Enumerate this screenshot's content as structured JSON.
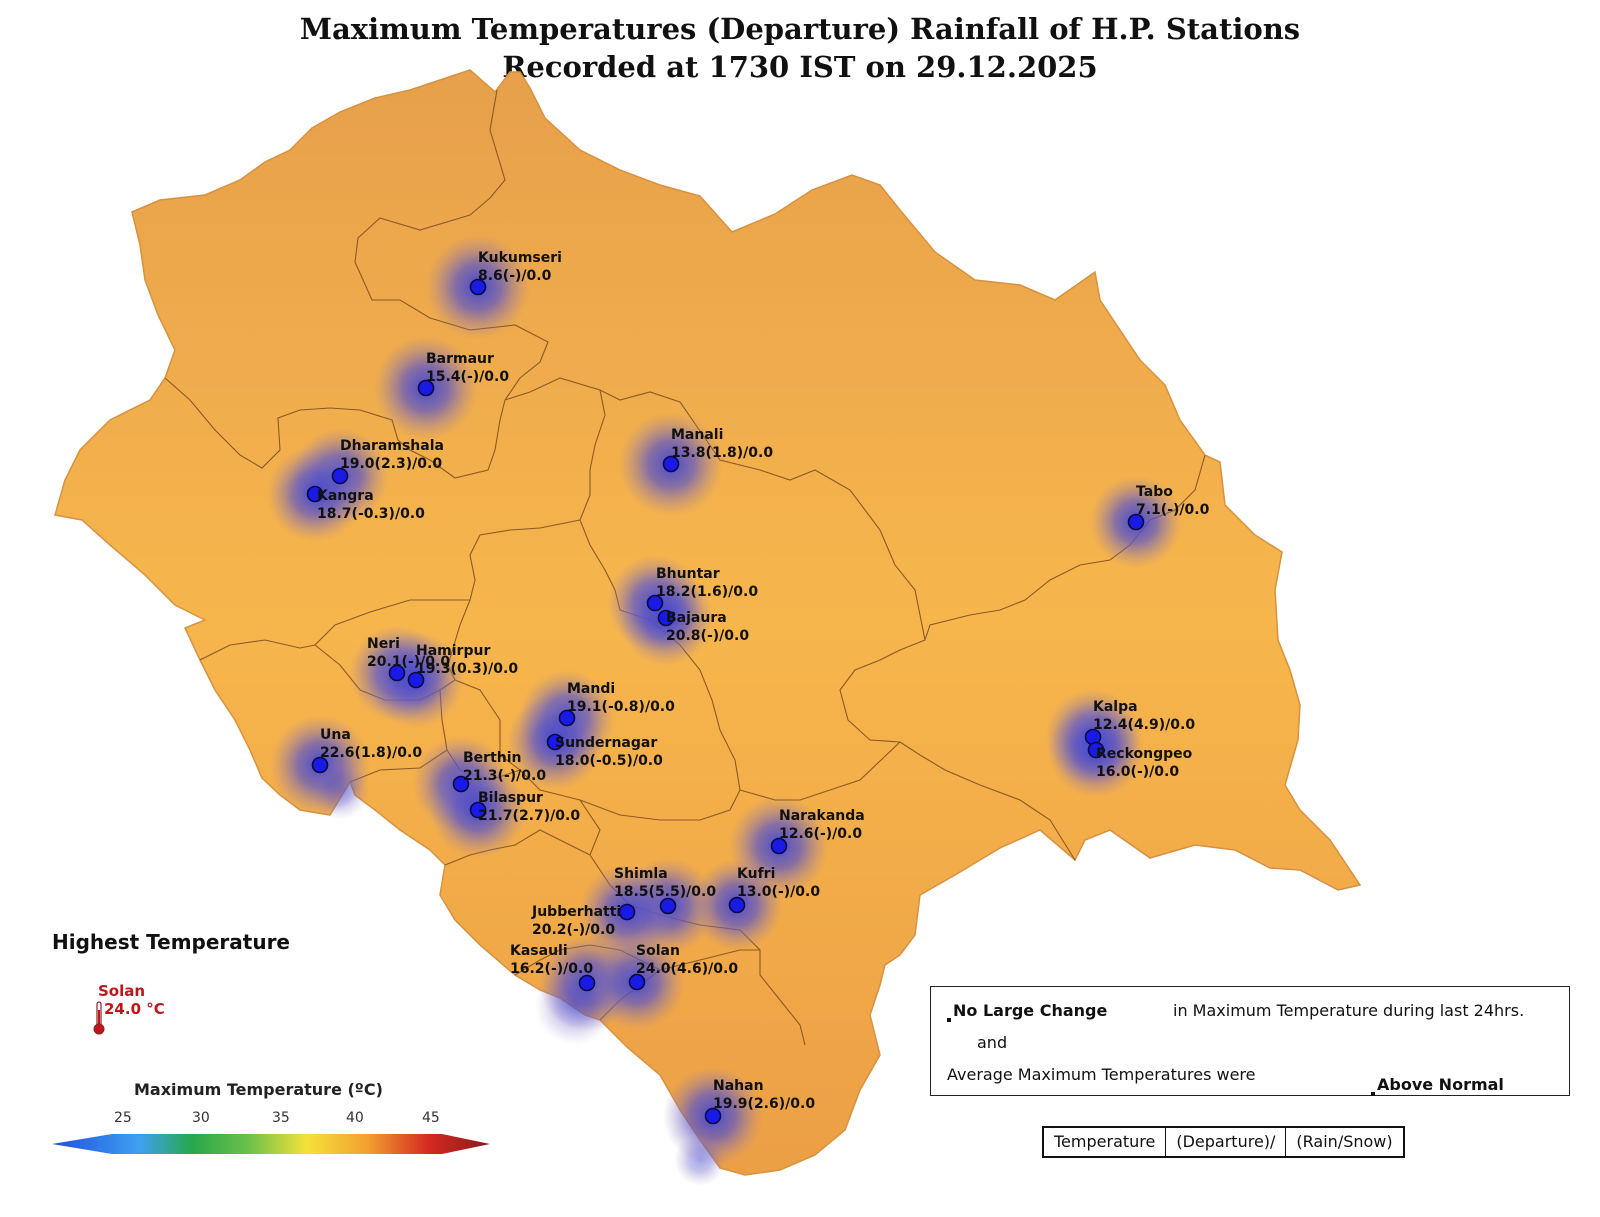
{
  "title": {
    "line1": "Maximum Temperatures (Departure) Rainfall of H.P. Stations",
    "line2": "Recorded at 1730 IST on 29.12.2025"
  },
  "stations": [
    {
      "name": "Kukumseri",
      "value": "8.6(-)/0.0"
    },
    {
      "name": "Barmaur",
      "value": "15.4(-)/0.0"
    },
    {
      "name": "Dharamshala",
      "value": "19.0(2.3)/0.0"
    },
    {
      "name": "Kangra",
      "value": "18.7(-0.3)/0.0"
    },
    {
      "name": "Manali",
      "value": "13.8(1.8)/0.0"
    },
    {
      "name": "Tabo",
      "value": "7.1(-)/0.0"
    },
    {
      "name": "Bhuntar",
      "value": "18.2(1.6)/0.0"
    },
    {
      "name": "Bajaura",
      "value": "20.8(-)/0.0"
    },
    {
      "name": "Neri",
      "value": "20.1(-)/0.0"
    },
    {
      "name": "Hamirpur",
      "value": "19.3(0.3)/0.0"
    },
    {
      "name": "Mandi",
      "value": "19.1(-0.8)/0.0"
    },
    {
      "name": "Sundernagar",
      "value": "18.0(-0.5)/0.0"
    },
    {
      "name": "Kalpa",
      "value": "12.4(4.9)/0.0"
    },
    {
      "name": "Reckongpeo",
      "value": "16.0(-)/0.0"
    },
    {
      "name": "Una",
      "value": "22.6(1.8)/0.0"
    },
    {
      "name": "Berthin",
      "value": "21.3(-)/0.0"
    },
    {
      "name": "Bilaspur",
      "value": "21.7(2.7)/0.0"
    },
    {
      "name": "Narakanda",
      "value": "12.6(-)/0.0"
    },
    {
      "name": "Shimla",
      "value": "18.5(5.5)/0.0"
    },
    {
      "name": "Kufri",
      "value": "13.0(-)/0.0"
    },
    {
      "name": "Jubberhatti",
      "value": "20.2(-)/0.0"
    },
    {
      "name": "Kasauli",
      "value": "16.2(-)/0.0"
    },
    {
      "name": "Solan",
      "value": "24.0(4.6)/0.0"
    },
    {
      "name": "Nahan",
      "value": "19.9(2.6)/0.0"
    }
  ],
  "highest": {
    "title": "Highest Temperature",
    "station": "Solan",
    "value": "24.0 °C"
  },
  "legend": {
    "title": "Maximum Temperature (ºC)",
    "ticks": [
      "25",
      "30",
      "35",
      "40",
      "45"
    ]
  },
  "summary": {
    "change": "No Large Change",
    "change_tail": "in Maximum Temperature during last 24hrs.",
    "and": "and",
    "avg_prefix": "Average Maximum Temperatures were",
    "avg_status": "Above Normal"
  },
  "key": [
    "Temperature",
    "(Departure)/",
    "(Rain/Snow)"
  ],
  "colors": {
    "land": "#f4ac4a",
    "land_edge": "#e29545",
    "district_border": "#8a5a26",
    "station_dot": "#1a1ae6",
    "cool_halo": "#4c50d8",
    "highlight": "#c0161b"
  }
}
